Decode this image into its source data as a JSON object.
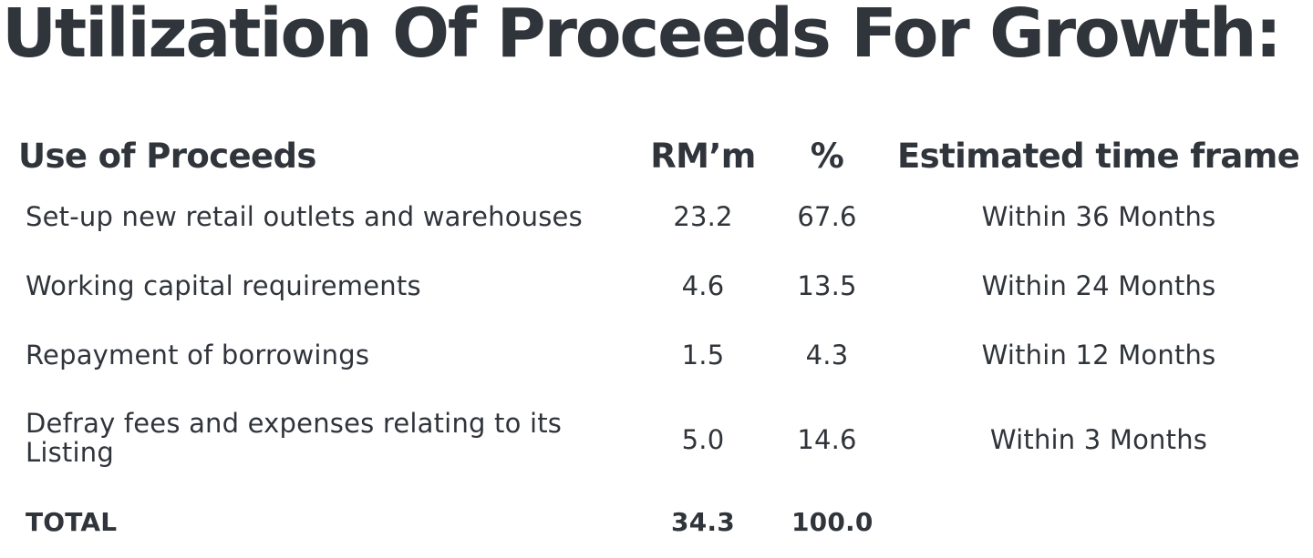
{
  "title": "Utilization Of Proceeds For Growth:",
  "table": {
    "headers": {
      "use": "Use of Proceeds",
      "rm": "RM’m",
      "pct": "%",
      "time": "Estimated time frame"
    },
    "rows": [
      {
        "use": "Set-up new retail outlets and warehouses",
        "rm": "23.2",
        "pct": "67.6",
        "time": "Within 36 Months"
      },
      {
        "use": "Working capital requirements",
        "rm": "4.6",
        "pct": "13.5",
        "time": "Within 24 Months"
      },
      {
        "use": "Repayment of borrowings",
        "rm": "1.5",
        "pct": "4.3",
        "time": "Within 12 Months"
      },
      {
        "use": "Defray fees and expenses relating to its Listing",
        "rm": "5.0",
        "pct": "14.6",
        "time": "Within 3 Months"
      }
    ],
    "total": {
      "label": "TOTAL",
      "rm": "34.3",
      "pct": "100.0"
    }
  }
}
